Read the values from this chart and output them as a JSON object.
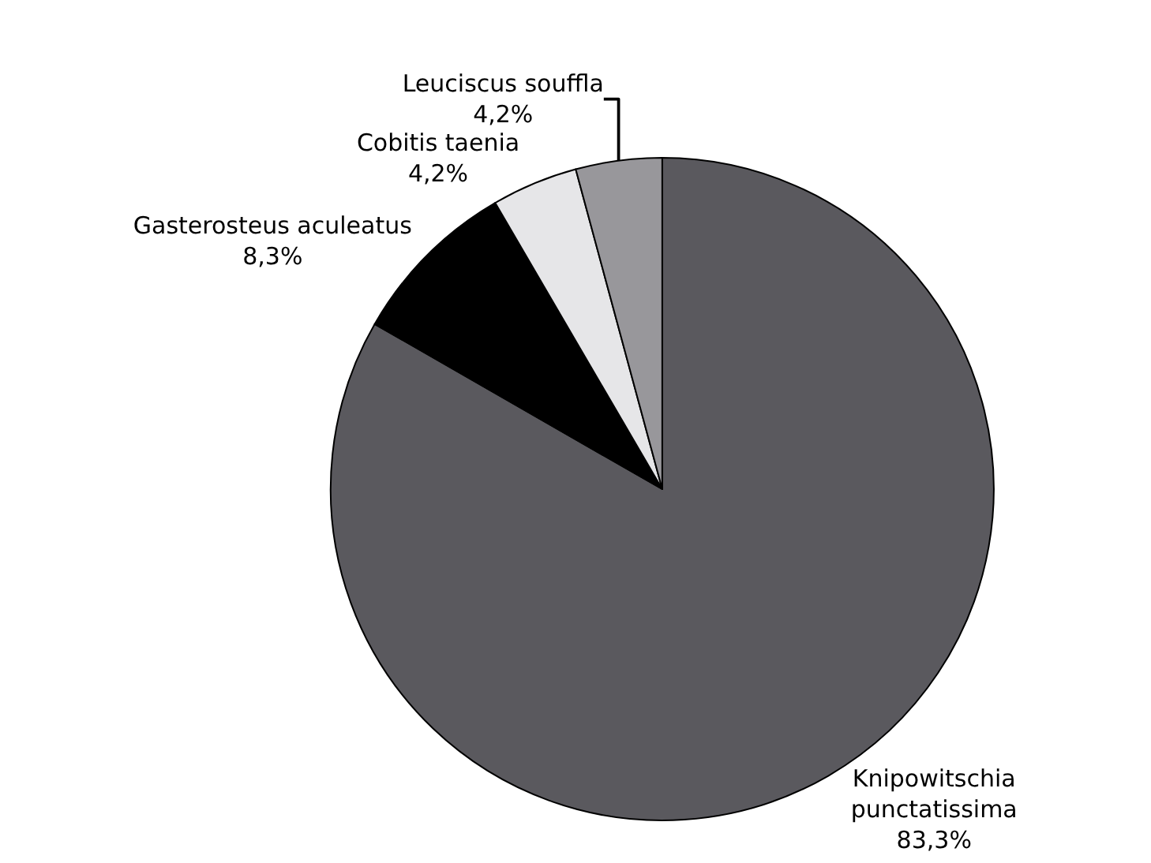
{
  "chart_data": {
    "type": "pie",
    "categories": [
      "Knipowitschia punctatissima",
      "Gasterosteus aculeatus",
      "Cobitis taenia",
      "Leuciscus souffla"
    ],
    "values": [
      83.3,
      8.3,
      4.2,
      4.2
    ],
    "value_labels": [
      "83,3%",
      "8,3%",
      "4,2%",
      "4,2%"
    ],
    "colors": [
      "#5a595e",
      "#000000",
      "#e6e6e8",
      "#98979b"
    ],
    "legend": false
  }
}
